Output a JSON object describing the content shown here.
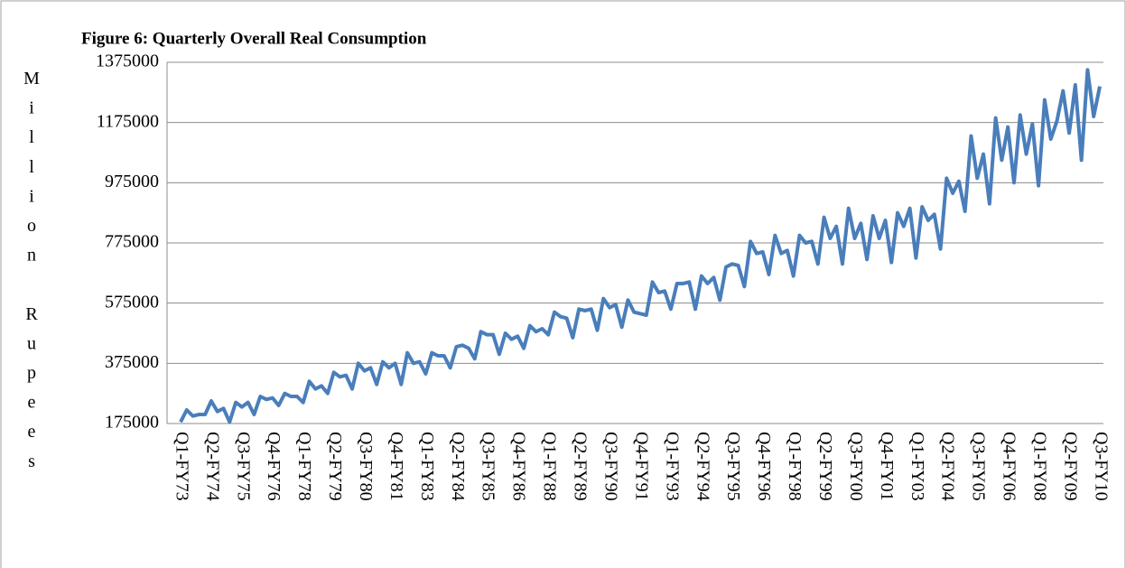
{
  "chart_data": {
    "type": "line",
    "title": "Figure 6: Quarterly Overall Real Consumption",
    "y_label": "Million Rupees",
    "categories": [
      "Q1-FY73",
      null,
      null,
      null,
      null,
      "Q2-FY74",
      null,
      null,
      null,
      null,
      "Q3-FY75",
      null,
      null,
      null,
      null,
      "Q4-FY76",
      null,
      null,
      null,
      null,
      "Q1-FY78",
      null,
      null,
      null,
      null,
      "Q2-FY79",
      null,
      null,
      null,
      null,
      "Q3-FY80",
      null,
      null,
      null,
      null,
      "Q4-FY81",
      null,
      null,
      null,
      null,
      "Q1-FY83",
      null,
      null,
      null,
      null,
      "Q2-FY84",
      null,
      null,
      null,
      null,
      "Q3-FY85",
      null,
      null,
      null,
      null,
      "Q4-FY86",
      null,
      null,
      null,
      null,
      "Q1-FY88",
      null,
      null,
      null,
      null,
      "Q2-FY89",
      null,
      null,
      null,
      null,
      "Q3-FY90",
      null,
      null,
      null,
      null,
      "Q4-FY91",
      null,
      null,
      null,
      null,
      "Q1-FY93",
      null,
      null,
      null,
      null,
      "Q2-FY94",
      null,
      null,
      null,
      null,
      "Q3-FY95",
      null,
      null,
      null,
      null,
      "Q4-FY96",
      null,
      null,
      null,
      null,
      "Q1-FY98",
      null,
      null,
      null,
      null,
      "Q2-FY99",
      null,
      null,
      null,
      null,
      "Q3-FY00",
      null,
      null,
      null,
      null,
      "Q4-FY01",
      null,
      null,
      null,
      null,
      "Q1-FY03",
      null,
      null,
      null,
      null,
      "Q2-FY04",
      null,
      null,
      null,
      null,
      "Q3-FY05",
      null,
      null,
      null,
      null,
      "Q4-FY06",
      null,
      null,
      null,
      null,
      "Q1-FY08",
      null,
      null,
      null,
      null,
      "Q2-FY09",
      null,
      null,
      null,
      null,
      "Q3-FY10"
    ],
    "series": [
      {
        "name": "Overall Real Consumption",
        "color": "#4a7ebb",
        "values": [
          180000,
          220000,
          200000,
          205000,
          205000,
          250000,
          215000,
          225000,
          180000,
          245000,
          230000,
          245000,
          205000,
          265000,
          255000,
          260000,
          235000,
          275000,
          265000,
          265000,
          245000,
          315000,
          290000,
          300000,
          275000,
          345000,
          330000,
          335000,
          290000,
          375000,
          350000,
          360000,
          305000,
          380000,
          360000,
          375000,
          305000,
          410000,
          375000,
          380000,
          340000,
          410000,
          400000,
          400000,
          360000,
          430000,
          435000,
          425000,
          390000,
          480000,
          470000,
          470000,
          405000,
          475000,
          455000,
          465000,
          425000,
          500000,
          480000,
          490000,
          470000,
          545000,
          530000,
          525000,
          460000,
          555000,
          550000,
          555000,
          485000,
          590000,
          560000,
          570000,
          495000,
          585000,
          545000,
          540000,
          535000,
          645000,
          610000,
          615000,
          555000,
          640000,
          640000,
          645000,
          555000,
          665000,
          640000,
          660000,
          585000,
          695000,
          705000,
          700000,
          630000,
          780000,
          740000,
          745000,
          670000,
          800000,
          740000,
          750000,
          665000,
          800000,
          775000,
          780000,
          705000,
          860000,
          790000,
          830000,
          705000,
          890000,
          790000,
          840000,
          720000,
          865000,
          790000,
          850000,
          710000,
          875000,
          830000,
          890000,
          725000,
          895000,
          850000,
          870000,
          755000,
          990000,
          940000,
          980000,
          880000,
          1130000,
          990000,
          1070000,
          905000,
          1190000,
          1050000,
          1160000,
          975000,
          1200000,
          1070000,
          1170000,
          965000,
          1250000,
          1120000,
          1180000,
          1280000,
          1140000,
          1300000,
          1050000,
          1350000,
          1195000,
          1295000
        ]
      }
    ],
    "ylim": [
      175000,
      1375000
    ],
    "yticks": [
      175000,
      375000,
      575000,
      775000,
      975000,
      1175000,
      1375000
    ],
    "grid": true
  }
}
